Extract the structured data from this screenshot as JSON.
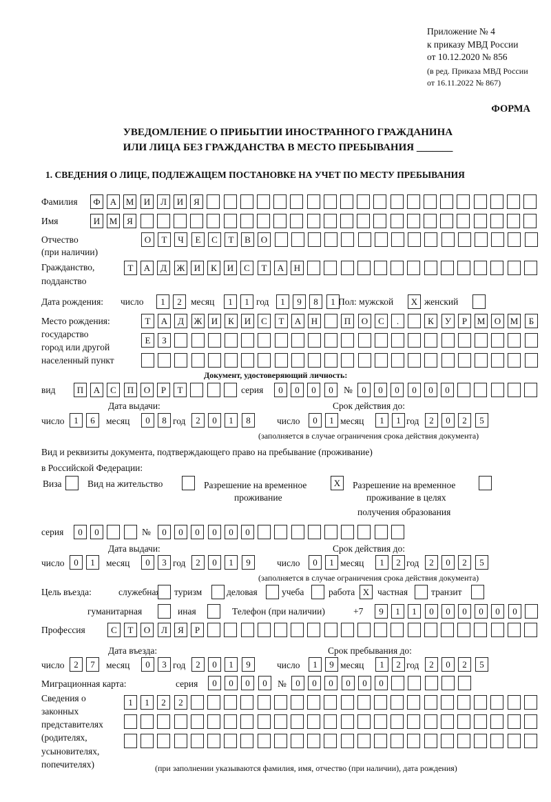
{
  "header": {
    "appendix": "Приложение № 4",
    "order": "к приказу МВД России",
    "order_date": "от 10.12.2020 № 856",
    "edition1": "(в ред. Приказа МВД России",
    "edition2": "от 16.11.2022 № 867)",
    "form": "ФОРМА",
    "title1": "УВЕДОМЛЕНИЕ О ПРИБЫТИИ ИНОСТРАННОГО ГРАЖДАНИНА",
    "title2": "ИЛИ ЛИЦА БЕЗ ГРАЖДАНСТВА В МЕСТО ПРЕБЫВАНИЯ _______",
    "section1": "1. СВЕДЕНИЯ О ЛИЦЕ, ПОДЛЕЖАЩЕМ ПОСТАНОВКЕ НА УЧЕТ ПО МЕСТУ ПРЕБЫВАНИЯ"
  },
  "labels": {
    "surname": "Фамилия",
    "name": "Имя",
    "patronymic": "Отчество",
    "patronymic2": "(при наличии)",
    "citizenship": "Гражданство,",
    "citizenship2": "подданство",
    "birth_date": "Дата рождения:",
    "day": "число",
    "month": "месяц",
    "year": "год",
    "sex": "Пол: мужской",
    "female": "женский",
    "birth_place": "Место рождения:",
    "birth_place2": "государство",
    "birth_place3": "город или другой",
    "birth_place4": "населенный пункт",
    "id_doc": "Документ, удостоверяющий личность:",
    "kind": "вид",
    "series": "серия",
    "number": "№",
    "issue_date": "Дата выдачи:",
    "valid_until": "Срок действия до:",
    "validity_note": "(заполняется в случае ограничения срока действия документа)",
    "right_doc1": "Вид и реквизиты документа, подтверждающего право на пребывание (проживание)",
    "right_doc2": "в Российской Федерации:",
    "visa": "Виза",
    "residence": "Вид на жительство",
    "temp_res1": "Разрешение на временное",
    "temp_res2": "проживание",
    "temp_edu1": "Разрешение на временное",
    "temp_edu2": "проживание в целях",
    "temp_edu3": "получения образования",
    "purpose": "Цель въезда:",
    "official": "служебная",
    "tourism": "туризм",
    "business": "деловая",
    "study": "учеба",
    "work": "работа",
    "private": "частная",
    "transit": "транзит",
    "humanitarian": "гуманитарная",
    "other": "иная",
    "phone": "Телефон (при наличии)",
    "phone_prefix": "+7",
    "profession": "Профессия",
    "entry_date": "Дата въезда:",
    "stay_until": "Срок пребывания до:",
    "migration_card": "Миграционная карта:",
    "reps1": "Сведения о",
    "reps2": "законных",
    "reps3": "представителях",
    "reps4": "(родителях,",
    "reps5": "усыновителях,",
    "reps6": "попечителях)",
    "reps_note": "(при заполнении указываются фамилия, имя, отчество (при наличии), дата рождения)"
  },
  "fields": {
    "surname": "ФАМИЛИЯ",
    "name": "ИМЯ",
    "patronymic": "ОТЧЕСТВО",
    "citizenship": "ТАДЖИКИСТАН",
    "birth_day": "12",
    "birth_month": "11",
    "birth_year": "1981",
    "male": "X",
    "female": "",
    "birth_place1": "ТАДЖИКИСТАН ПОС. КУРМОМБ",
    "birth_place2": "ЕЗ",
    "birth_place3": "",
    "doc_kind": "ПАСПОРТ",
    "doc_series": "0000",
    "doc_number": "000000",
    "doc_issue_day": "16",
    "doc_issue_month": "08",
    "doc_issue_year": "2018",
    "doc_valid_day": "01",
    "doc_valid_month": "11",
    "doc_valid_year": "2025",
    "visa": "",
    "residence": "",
    "temp_res": "X",
    "temp_edu": "",
    "right_series": "00",
    "right_number": "000000",
    "right_issue_day": "01",
    "right_issue_month": "03",
    "right_issue_year": "2019",
    "right_valid_day": "01",
    "right_valid_month": "12",
    "right_valid_year": "2025",
    "official": "",
    "tourism": "",
    "business": "",
    "study": "",
    "work": "X",
    "private": "",
    "transit": "",
    "humanitarian": "",
    "other": "",
    "phone": "911000000",
    "profession": "СТОЛЯР",
    "entry_day": "27",
    "entry_month": "03",
    "entry_year": "2019",
    "stay_day": "19",
    "stay_month": "12",
    "stay_year": "2025",
    "mc_series": "0000",
    "mc_number": "000000",
    "reps1": "1122",
    "reps2": "",
    "reps3": ""
  }
}
